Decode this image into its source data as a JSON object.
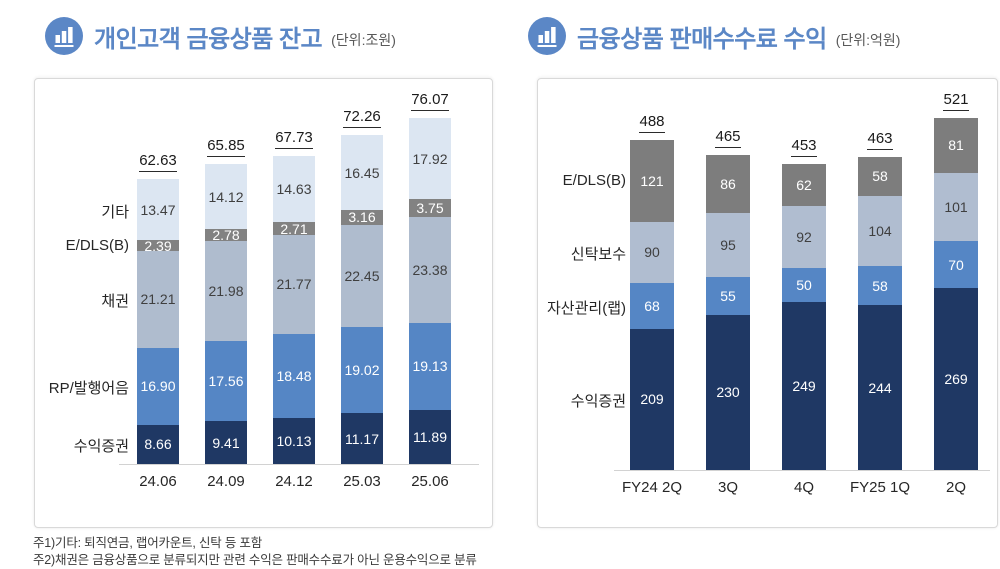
{
  "footnotes": [
    "주1)기타: 퇴직연금, 랩어카운트, 신탁 등 포함",
    "주2)채권은 금융상품으로 분류되지만 관련 수익은 판매수수료가 아닌 운용수익으로 분류"
  ],
  "accent_color": "#5B87C6",
  "chart_data": [
    {
      "type": "bar",
      "stacked": true,
      "title": "개인고객 금융상품 잔고",
      "unit_label": "(단위:조원)",
      "categories": [
        "24.06",
        "24.09",
        "24.12",
        "25.03",
        "25.06"
      ],
      "totals": [
        "62.63",
        "65.85",
        "67.73",
        "72.26",
        "76.07"
      ],
      "value_decimals": 2,
      "ylim": [
        0,
        76.07
      ],
      "legend_position": "left-of-bars",
      "grid": false,
      "series": [
        {
          "name": "수익증권",
          "color": "#1F3864",
          "label_color": "#FFFFFF",
          "values": [
            8.66,
            9.41,
            10.13,
            11.17,
            11.89
          ]
        },
        {
          "name": "RP/발행어음",
          "color": "#5586C5",
          "label_color": "#FFFFFF",
          "values": [
            16.9,
            17.56,
            18.48,
            19.02,
            19.13
          ]
        },
        {
          "name": "채권",
          "color": "#AFBCCE",
          "label_color": "#3F3F3F",
          "values": [
            21.21,
            21.98,
            21.77,
            22.45,
            23.38
          ]
        },
        {
          "name": "E/DLS(B)",
          "color": "#828282",
          "label_color": "#FFFFFF",
          "values": [
            2.39,
            2.78,
            2.71,
            3.16,
            3.75
          ]
        },
        {
          "name": "기타",
          "color": "#DCE6F2",
          "label_color": "#3F3F3F",
          "values": [
            13.47,
            14.12,
            14.63,
            16.45,
            17.92
          ]
        }
      ]
    },
    {
      "type": "bar",
      "stacked": true,
      "title": "금융상품 판매수수료 수익",
      "unit_label": "(단위:억원)",
      "categories": [
        "FY24 2Q",
        "3Q",
        "4Q",
        "FY25 1Q",
        "2Q"
      ],
      "totals": [
        "488",
        "465",
        "453",
        "463",
        "521"
      ],
      "value_decimals": 0,
      "ylim": [
        0,
        521
      ],
      "legend_position": "left-of-bars",
      "grid": false,
      "series": [
        {
          "name": "수익증권",
          "color": "#1F3864",
          "label_color": "#FFFFFF",
          "values": [
            209,
            230,
            249,
            244,
            269
          ]
        },
        {
          "name": "자산관리(랩)",
          "color": "#5586C5",
          "label_color": "#FFFFFF",
          "values": [
            68,
            55,
            50,
            58,
            70
          ]
        },
        {
          "name": "신탁보수",
          "color": "#B0BDD0",
          "label_color": "#3F3F3F",
          "values": [
            90,
            95,
            92,
            104,
            101
          ]
        },
        {
          "name": "E/DLS(B)",
          "color": "#7D7D7D",
          "label_color": "#FFFFFF",
          "values": [
            121,
            86,
            62,
            58,
            81
          ]
        }
      ]
    }
  ]
}
